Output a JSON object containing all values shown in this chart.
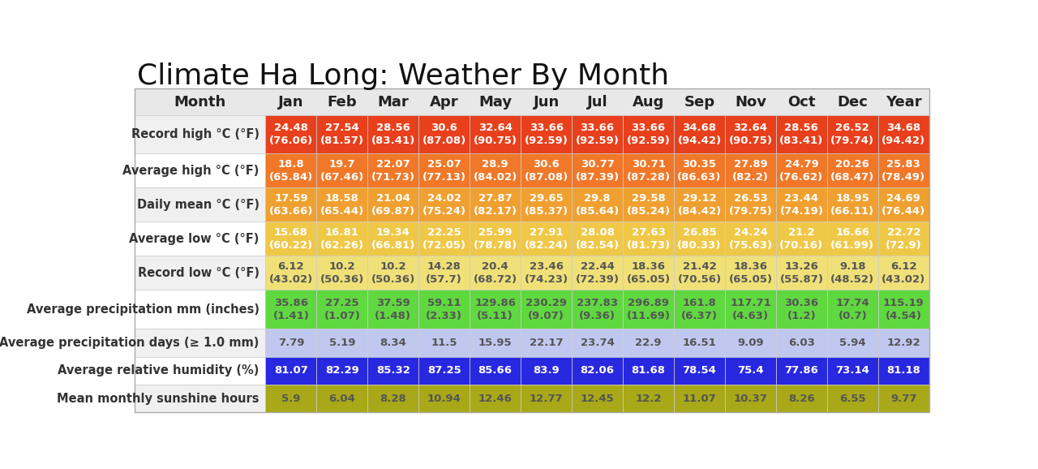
{
  "title": "Climate Ha Long: Weather By Month",
  "months": [
    "Jan",
    "Feb",
    "Mar",
    "Apr",
    "May",
    "Jun",
    "Jul",
    "Aug",
    "Sep",
    "Nov",
    "Oct",
    "Dec",
    "Year"
  ],
  "row_labels": [
    "Record high °C (°F)",
    "Average high °C (°F)",
    "Daily mean °C (°F)",
    "Average low °C (°F)",
    "Record low °C (°F)",
    "Average precipitation mm (inches)",
    "Average precipitation days (≥ 1.0 mm)",
    "Average relative humidity (%)",
    "Mean monthly sunshine hours"
  ],
  "cell_data": [
    [
      "24.48\n(76.06)",
      "27.54\n(81.57)",
      "28.56\n(83.41)",
      "30.6\n(87.08)",
      "32.64\n(90.75)",
      "33.66\n(92.59)",
      "33.66\n(92.59)",
      "33.66\n(92.59)",
      "34.68\n(94.42)",
      "32.64\n(90.75)",
      "28.56\n(83.41)",
      "26.52\n(79.74)",
      "34.68\n(94.42)"
    ],
    [
      "18.8\n(65.84)",
      "19.7\n(67.46)",
      "22.07\n(71.73)",
      "25.07\n(77.13)",
      "28.9\n(84.02)",
      "30.6\n(87.08)",
      "30.77\n(87.39)",
      "30.71\n(87.28)",
      "30.35\n(86.63)",
      "27.89\n(82.2)",
      "24.79\n(76.62)",
      "20.26\n(68.47)",
      "25.83\n(78.49)"
    ],
    [
      "17.59\n(63.66)",
      "18.58\n(65.44)",
      "21.04\n(69.87)",
      "24.02\n(75.24)",
      "27.87\n(82.17)",
      "29.65\n(85.37)",
      "29.8\n(85.64)",
      "29.58\n(85.24)",
      "29.12\n(84.42)",
      "26.53\n(79.75)",
      "23.44\n(74.19)",
      "18.95\n(66.11)",
      "24.69\n(76.44)"
    ],
    [
      "15.68\n(60.22)",
      "16.81\n(62.26)",
      "19.34\n(66.81)",
      "22.25\n(72.05)",
      "25.99\n(78.78)",
      "27.91\n(82.24)",
      "28.08\n(82.54)",
      "27.63\n(81.73)",
      "26.85\n(80.33)",
      "24.24\n(75.63)",
      "21.2\n(70.16)",
      "16.66\n(61.99)",
      "22.72\n(72.9)"
    ],
    [
      "6.12\n(43.02)",
      "10.2\n(50.36)",
      "10.2\n(50.36)",
      "14.28\n(57.7)",
      "20.4\n(68.72)",
      "23.46\n(74.23)",
      "22.44\n(72.39)",
      "18.36\n(65.05)",
      "21.42\n(70.56)",
      "18.36\n(65.05)",
      "13.26\n(55.87)",
      "9.18\n(48.52)",
      "6.12\n(43.02)"
    ],
    [
      "35.86\n(1.41)",
      "27.25\n(1.07)",
      "37.59\n(1.48)",
      "59.11\n(2.33)",
      "129.86\n(5.11)",
      "230.29\n(9.07)",
      "237.83\n(9.36)",
      "296.89\n(11.69)",
      "161.8\n(6.37)",
      "117.71\n(4.63)",
      "30.36\n(1.2)",
      "17.74\n(0.7)",
      "115.19\n(4.54)"
    ],
    [
      "7.79",
      "5.19",
      "8.34",
      "11.5",
      "15.95",
      "22.17",
      "23.74",
      "22.9",
      "16.51",
      "9.09",
      "6.03",
      "5.94",
      "12.92"
    ],
    [
      "81.07",
      "82.29",
      "85.32",
      "87.25",
      "85.66",
      "83.9",
      "82.06",
      "81.68",
      "78.54",
      "75.4",
      "77.86",
      "73.14",
      "81.18"
    ],
    [
      "5.9",
      "6.04",
      "8.28",
      "10.94",
      "12.46",
      "12.77",
      "12.45",
      "12.2",
      "11.07",
      "10.37",
      "8.26",
      "6.55",
      "9.77"
    ]
  ],
  "row_bg_colors": [
    "#e8401c",
    "#f07828",
    "#f0a030",
    "#f0c848",
    "#f0e078",
    "#60d840",
    "#c0c8f0",
    "#2828e0",
    "#a8a818"
  ],
  "row_text_colors": [
    "#ffffff",
    "#ffffff",
    "#ffffff",
    "#ffffff",
    "#555555",
    "#555555",
    "#555555",
    "#ffffff",
    "#555555"
  ],
  "header_bg": "#e8e8e8",
  "label_bg_colors": [
    "#f0f0f0",
    "#ffffff",
    "#f0f0f0",
    "#ffffff",
    "#f0f0f0",
    "#ffffff",
    "#f0f0f0",
    "#ffffff",
    "#f0f0f0"
  ],
  "title_fontsize": 26,
  "header_fontsize": 12,
  "cell_fontsize": 9.5,
  "row_label_fontsize": 10.5,
  "title_color": "#111111",
  "header_text_color": "#222222",
  "label_text_color": "#333333"
}
